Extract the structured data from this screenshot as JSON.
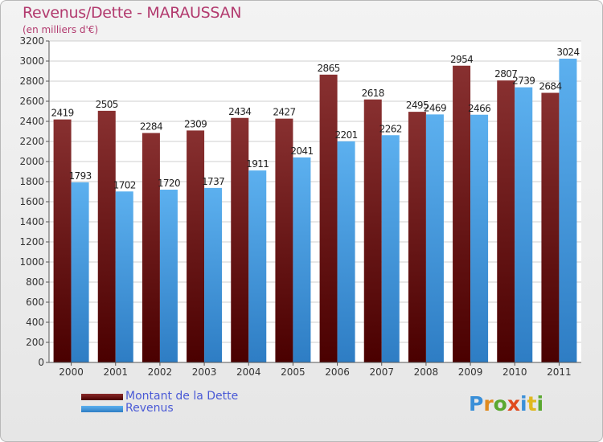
{
  "title": "Revenus/Dette - MARAUSSAN",
  "subtitle": "(en milliers d'€)",
  "legend": [
    {
      "label": "Montant de la Dette",
      "color": "#6e1414"
    },
    {
      "label": "Revenus",
      "color": "#4aa3e6"
    }
  ],
  "logo_text": "Proxiti",
  "chart_data": {
    "type": "bar",
    "categories": [
      "2000",
      "2001",
      "2002",
      "2003",
      "2004",
      "2005",
      "2006",
      "2007",
      "2008",
      "2009",
      "2010",
      "2011"
    ],
    "series": [
      {
        "name": "Montant de la Dette",
        "color": "#7a1d1d",
        "values": [
          2419,
          2505,
          2284,
          2309,
          2434,
          2427,
          2865,
          2618,
          2495,
          2954,
          2807,
          2684
        ]
      },
      {
        "name": "Revenus",
        "color": "#4aa3e6",
        "values": [
          1793,
          1702,
          1720,
          1737,
          1911,
          2041,
          2201,
          2262,
          2469,
          2466,
          2739,
          3024
        ]
      }
    ],
    "title": "Revenus/Dette - MARAUSSAN",
    "ylabel": "(en milliers d'€)",
    "ylim": [
      0,
      3200
    ],
    "yticks": [
      0,
      200,
      400,
      600,
      800,
      1000,
      1200,
      1400,
      1600,
      1800,
      2000,
      2200,
      2400,
      2600,
      2800,
      3000,
      3200
    ],
    "grid": true
  }
}
